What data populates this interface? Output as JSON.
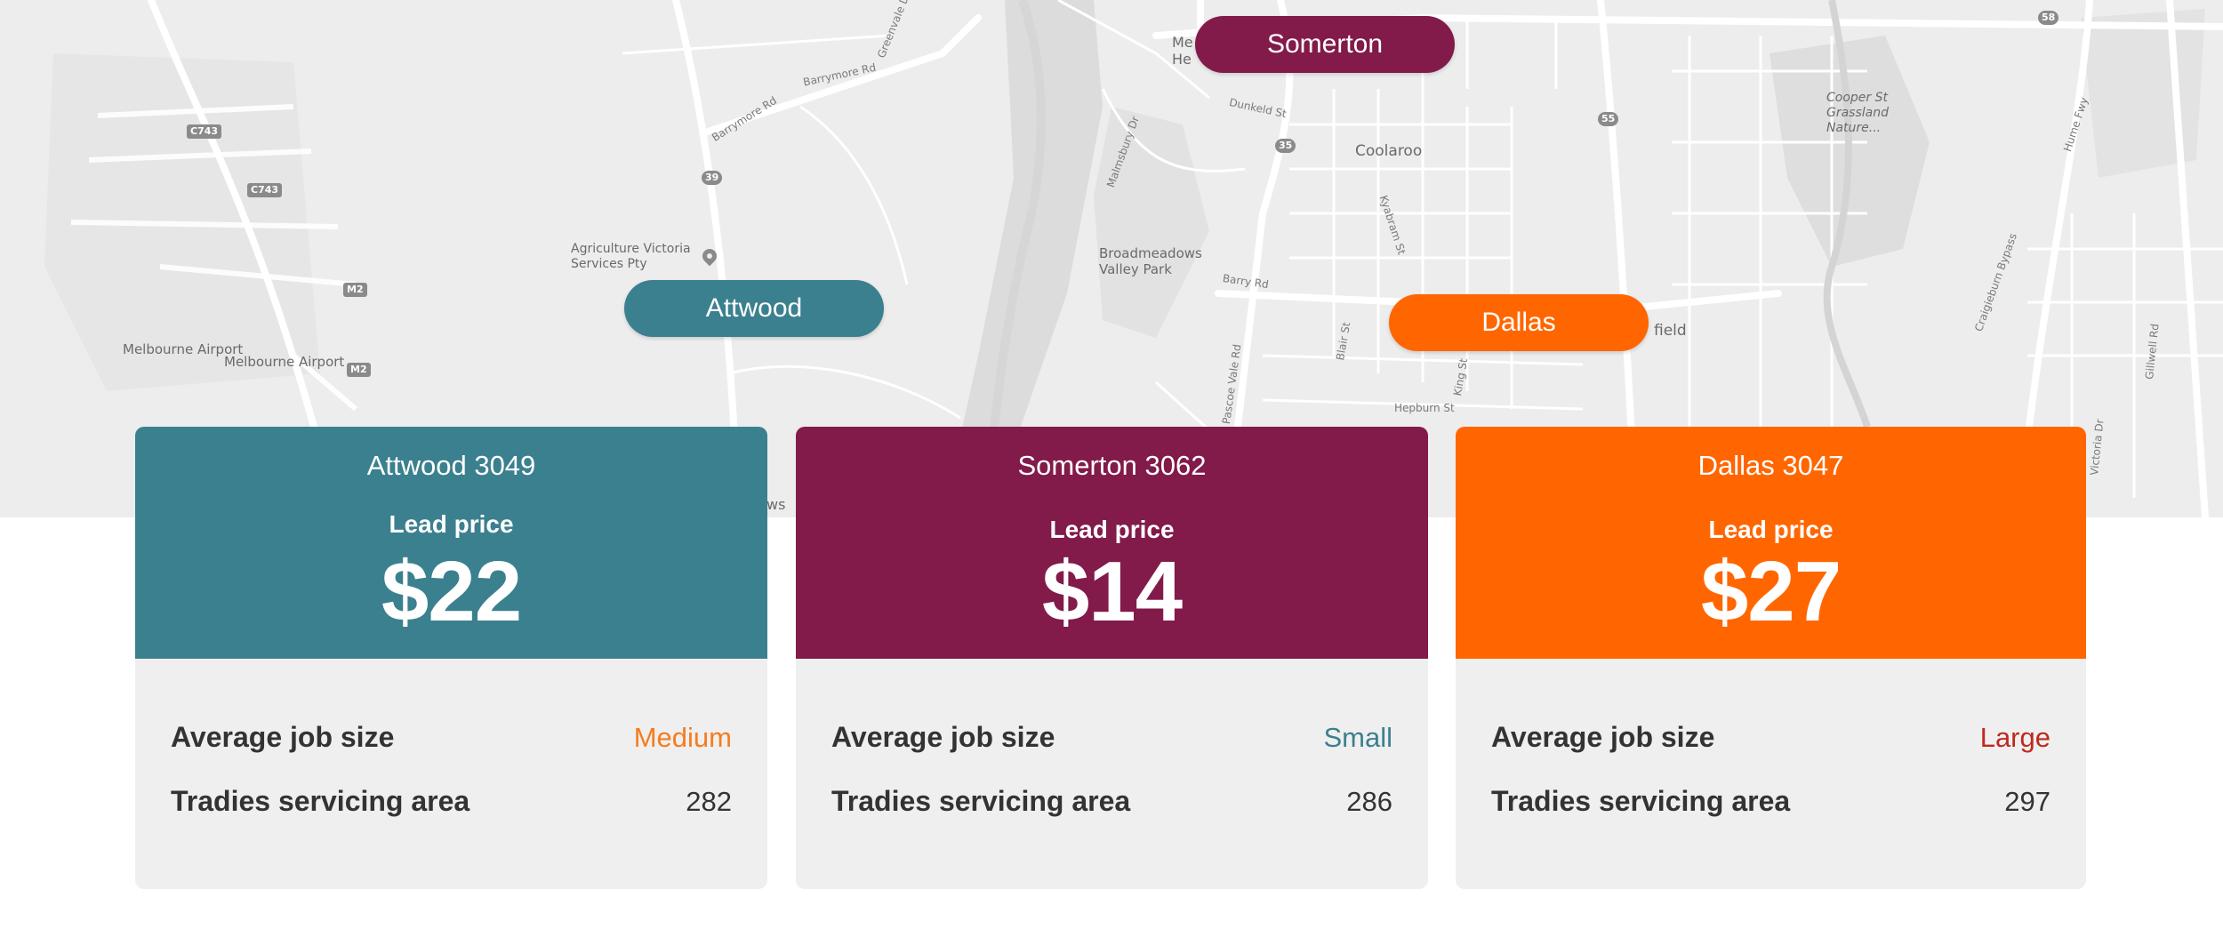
{
  "colors": {
    "attwood": "#3b808f",
    "somerton": "#821a4a",
    "dallas": "#ff6600",
    "size_medium": "#f57c1f",
    "size_small": "#3b808f",
    "size_large": "#c0281e"
  },
  "map": {
    "labels": {
      "melbourne_airport_1": "Melbourne Airport",
      "melbourne_airport_2": "Melbourne Airport",
      "agriculture": "Agriculture Victoria Services Pty",
      "broadmeadows": "Broadmeadows Valley Park",
      "coolaroo": "Coolaroo",
      "cooper_st": "Cooper St Grassland Nature...",
      "barrymore_rd_1": "Barrymore Rd",
      "barrymore_rd_2": "Barrymore Rd",
      "greenvale_dr": "Greenvale Dr",
      "dunkeld_st": "Dunkeld St",
      "malmsbury_dr": "Malmsbury Dr",
      "kyabram_st": "Kyabram St",
      "barry_rd": "Barry Rd",
      "pascoe_vale_rd": "Pascoe Vale Rd",
      "blair_st": "Blair St",
      "king_st": "King St",
      "hepburn_st": "Hepburn St",
      "hume_fwy": "Hume Fwy",
      "craigieburn_bypass": "Craigieburn Bypass",
      "gillwell_rd": "Gillwell Rd",
      "victoria_dr": "Victoria Dr",
      "field_partial": "field",
      "meadow_partial": "Me He",
      "ws_partial": "ws"
    },
    "shields": {
      "c743_a": "C743",
      "c743_b": "C743",
      "r39": "39",
      "m2_a": "M2",
      "m2_b": "M2",
      "r35": "35",
      "r55": "55",
      "r58": "58"
    }
  },
  "pills": {
    "somerton": "Somerton",
    "attwood": "Attwood",
    "dallas": "Dallas"
  },
  "cards": [
    {
      "title": "Attwood 3049",
      "lead_label": "Lead price",
      "price": "$22",
      "job_size_label": "Average job size",
      "job_size_value": "Medium",
      "tradies_label": "Tradies servicing area",
      "tradies_value": "282"
    },
    {
      "title": "Somerton 3062",
      "lead_label": "Lead price",
      "price": "$14",
      "job_size_label": "Average job size",
      "job_size_value": "Small",
      "tradies_label": "Tradies servicing area",
      "tradies_value": "286"
    },
    {
      "title": "Dallas 3047",
      "lead_label": "Lead price",
      "price": "$27",
      "job_size_label": "Average job size",
      "job_size_value": "Large",
      "tradies_label": "Tradies servicing area",
      "tradies_value": "297"
    }
  ]
}
